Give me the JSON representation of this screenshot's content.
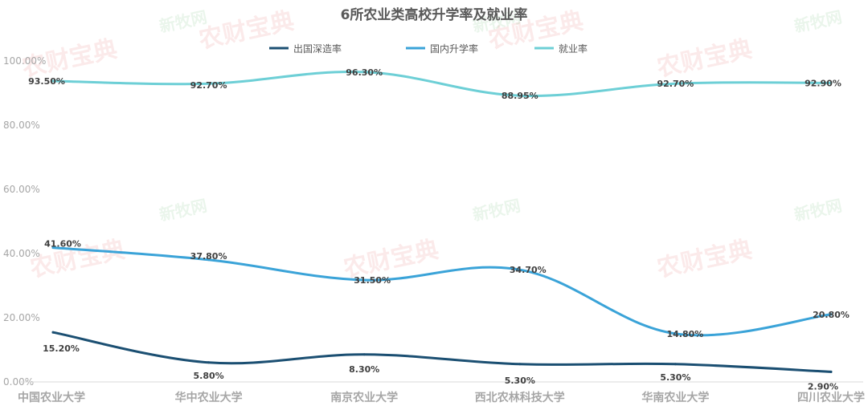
{
  "chart_data": {
    "type": "line",
    "title": "6所农业类高校升学率及就业率",
    "categories": [
      "中国农业大学",
      "华中农业大学",
      "南京农业大学",
      "西北农林科技大学",
      "华南农业大学",
      "四川农业大学"
    ],
    "series": [
      {
        "name": "出国深造率",
        "values": [
          15.2,
          5.8,
          8.3,
          5.3,
          5.3,
          2.9
        ],
        "labels": [
          "15.20%",
          "5.80%",
          "8.30%",
          "5.30%",
          "5.30%",
          "2.90%"
        ],
        "color": "#1b4f72"
      },
      {
        "name": "国内升学率",
        "values": [
          41.6,
          37.8,
          31.5,
          34.7,
          14.8,
          20.8
        ],
        "labels": [
          "41.60%",
          "37.80%",
          "31.50%",
          "34.70%",
          "14.80%",
          "20.80%"
        ],
        "color": "#3aa3d8"
      },
      {
        "name": "就业率",
        "values": [
          93.5,
          92.7,
          96.3,
          88.95,
          92.7,
          92.9
        ],
        "labels": [
          "93.50%",
          "92.70%",
          "96.30%",
          "88.95%",
          "92.70%",
          "92.90%"
        ],
        "color": "#6dcfd6"
      }
    ],
    "yticks": [
      "0.00%",
      "20.00%",
      "40.00%",
      "60.00%",
      "80.00%",
      "100.00%"
    ],
    "ytick_values": [
      0,
      20,
      40,
      60,
      80,
      100
    ],
    "ylim": [
      0,
      100
    ],
    "legend_position": "top-center",
    "grid": false
  },
  "watermarks": {
    "red_text": "农财宝典",
    "green_text": "新牧网",
    "red_color": "#e03a3a",
    "green_color": "#3aa64a"
  }
}
